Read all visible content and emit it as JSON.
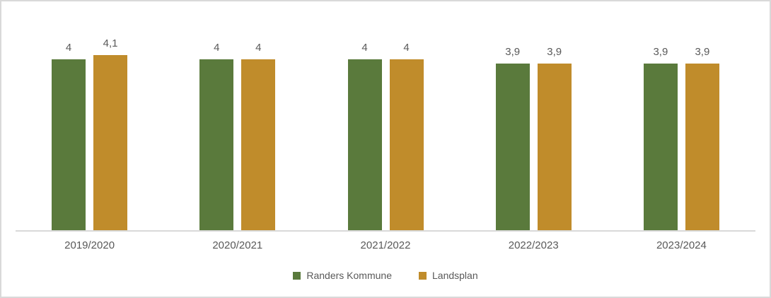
{
  "chart_data": {
    "type": "bar",
    "title": "",
    "xlabel": "",
    "ylabel": "",
    "categories": [
      "2019/2020",
      "2020/2021",
      "2021/2022",
      "2022/2023",
      "2023/2024"
    ],
    "series": [
      {
        "name": "Randers Kommune",
        "color": "#5a7a3c",
        "values": [
          4,
          4,
          4,
          3.9,
          3.9
        ],
        "value_labels": [
          "4",
          "4",
          "4",
          "3,9",
          "3,9"
        ]
      },
      {
        "name": "Landsplan",
        "color": "#c08c2b",
        "values": [
          4.1,
          4,
          4,
          3.9,
          3.9
        ],
        "value_labels": [
          "4,1",
          "4",
          "4",
          "3,9",
          "3,9"
        ]
      }
    ],
    "ylim": [
      0,
      4.5
    ],
    "grid": false,
    "axis_visible": "x-only",
    "legend_position": "bottom",
    "decimal_separator": ","
  },
  "colors": {
    "series_green": "#5a7a3c",
    "series_gold": "#c08c2b",
    "axis_line": "#d9d9d9",
    "frame_border": "#d9d9d9",
    "text": "#595959",
    "background": "#ffffff"
  }
}
